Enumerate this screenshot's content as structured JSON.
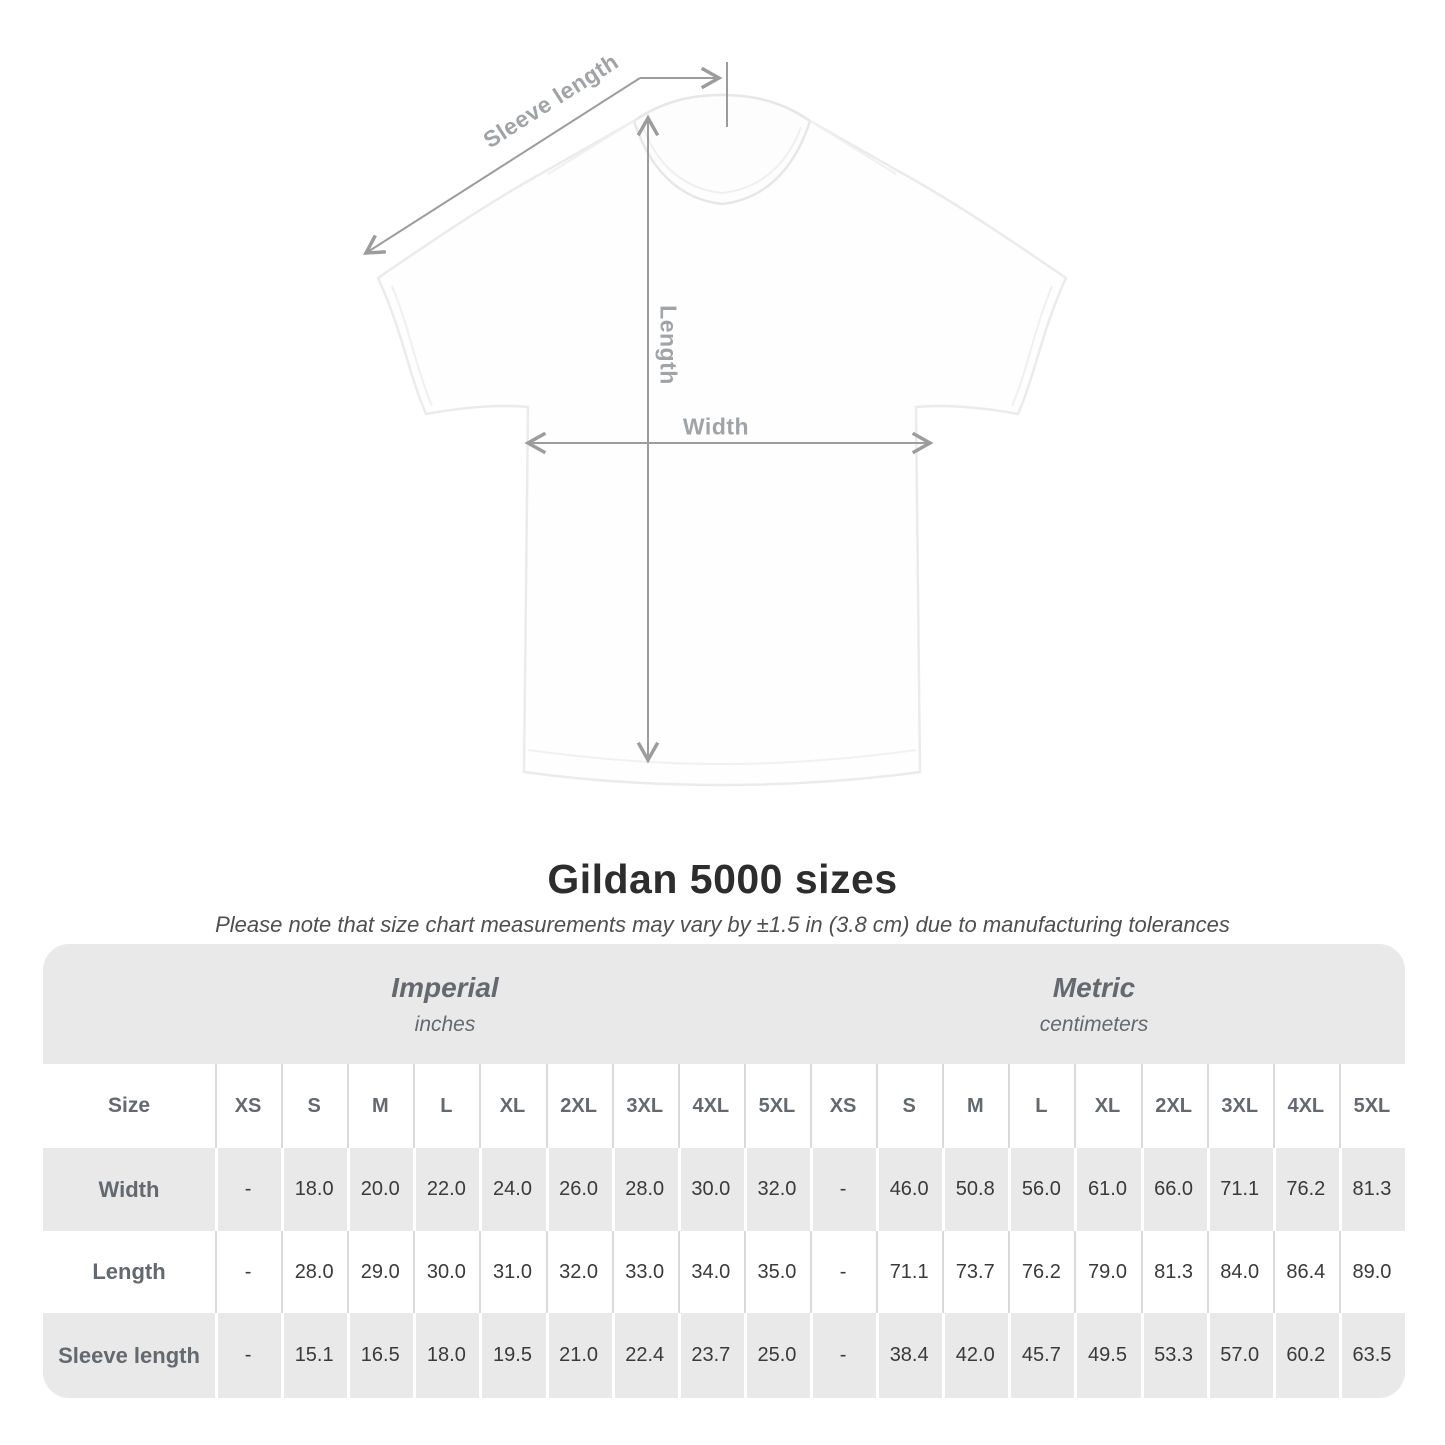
{
  "diagram": {
    "labels": {
      "sleeve_length": "Sleeve length",
      "length": "Length",
      "width": "Width"
    }
  },
  "header": {
    "title": "Gildan 5000 sizes",
    "subtitle": "Please note that size chart measurements may vary by ±1.5 in (3.8 cm) due to manufacturing tolerances"
  },
  "table": {
    "size_header": "Size",
    "groups": [
      {
        "label": "Imperial",
        "unit": "inches"
      },
      {
        "label": "Metric",
        "unit": "centimeters"
      }
    ],
    "sizes": [
      "XS",
      "S",
      "M",
      "L",
      "XL",
      "2XL",
      "3XL",
      "4XL",
      "5XL"
    ],
    "rows": [
      {
        "label": "Width",
        "imperial": [
          "-",
          "18.0",
          "20.0",
          "22.0",
          "24.0",
          "26.0",
          "28.0",
          "30.0",
          "32.0"
        ],
        "metric": [
          "-",
          "46.0",
          "50.8",
          "56.0",
          "61.0",
          "66.0",
          "71.1",
          "76.2",
          "81.3"
        ]
      },
      {
        "label": "Length",
        "imperial": [
          "-",
          "28.0",
          "29.0",
          "30.0",
          "31.0",
          "32.0",
          "33.0",
          "34.0",
          "35.0"
        ],
        "metric": [
          "-",
          "71.1",
          "73.7",
          "76.2",
          "79.0",
          "81.3",
          "84.0",
          "86.4",
          "89.0"
        ]
      },
      {
        "label": "Sleeve length",
        "imperial": [
          "-",
          "15.1",
          "16.5",
          "18.0",
          "19.5",
          "21.0",
          "22.4",
          "23.7",
          "25.0"
        ],
        "metric": [
          "-",
          "38.4",
          "42.0",
          "45.7",
          "49.5",
          "53.3",
          "57.0",
          "60.2",
          "63.5"
        ]
      }
    ]
  },
  "colors": {
    "band_gray": "#e9e9e9",
    "separator_gray": "#dadada",
    "label_gray": "#63696e",
    "value_dark": "#3a3a3a",
    "annotation_gray": "#9c9c9c",
    "title_dark": "#2d2d2d"
  }
}
